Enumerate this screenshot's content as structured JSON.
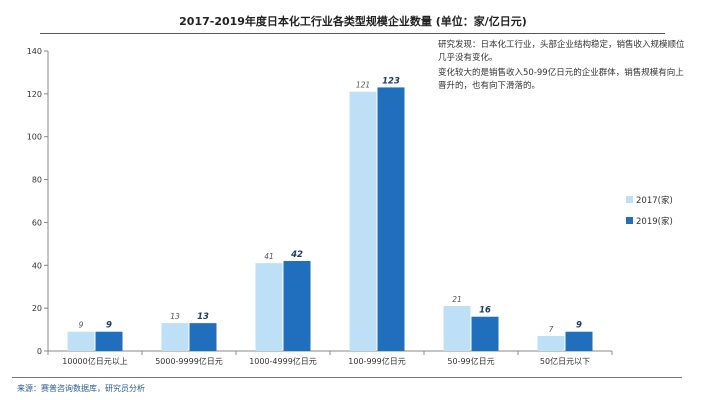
{
  "chart_data": {
    "type": "bar",
    "title": "2017-2019年度日本化工行业各类型规模企业数量 (单位：家/亿日元)",
    "categories": [
      "10000亿日元以上",
      "5000-9999亿日元",
      "1000-4999亿日元",
      "100-999亿日元",
      "50-99亿日元",
      "50亿日元以下"
    ],
    "series": [
      {
        "name": "2017(家)",
        "values": [
          9,
          13,
          41,
          121,
          21,
          7
        ],
        "color": "#bde0f7"
      },
      {
        "name": "2019(家)",
        "values": [
          9,
          13,
          42,
          123,
          16,
          9
        ],
        "color": "#1f6fbd"
      }
    ],
    "ylim": [
      0,
      140
    ],
    "yticks": [
      0,
      20,
      40,
      60,
      80,
      100,
      120,
      140
    ],
    "xlabel": "",
    "ylabel": "",
    "grid": false,
    "legend": "right"
  },
  "note": {
    "line1": "研究发现：日本化工行业，头部企业结构稳定，销售收入规模顺位几乎没有变化。",
    "line2": "变化较大的是销售收入50-99亿日元的企业群体，销售规模有向上晋升的，也有向下滑落的。"
  },
  "source": "来源：赛普咨询数据库，研究员分析"
}
